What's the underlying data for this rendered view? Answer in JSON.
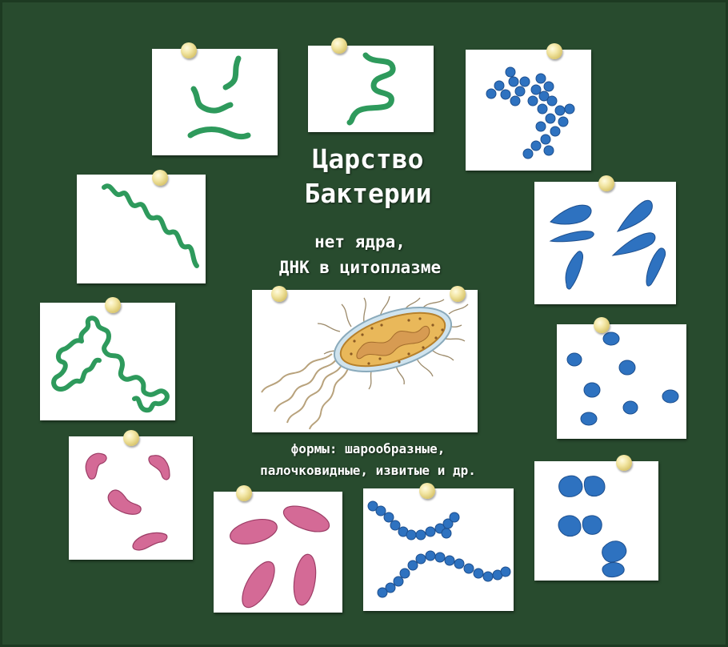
{
  "title": {
    "line1": "Царство",
    "line2": "Бактерии"
  },
  "properties": {
    "line1": "нет ядра,",
    "line2": "ДНК в цитоплазме"
  },
  "forms": {
    "line1": "формы: шарообразные,",
    "line2": "палочковидные, извитые и др."
  },
  "colors": {
    "board": "#284b2e",
    "spirillum_green": "#2e9a5c",
    "coccus_blue": "#2e72c0",
    "bacillus_pink": "#cf5888",
    "cell_body": "#e9b85a",
    "pin": "#f0e3a0"
  }
}
